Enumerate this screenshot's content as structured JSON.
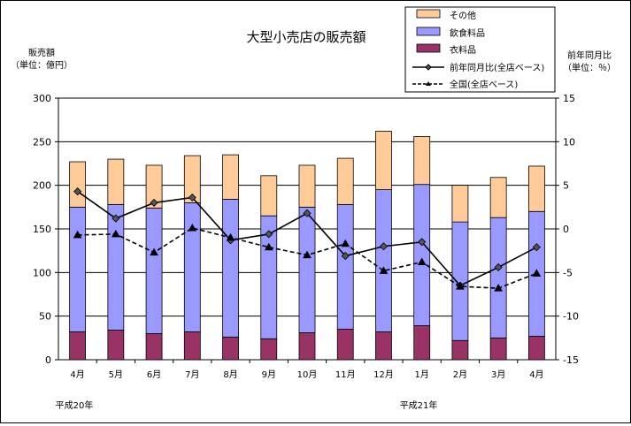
{
  "chart_data": {
    "type": "bar+line",
    "title": "大型小売店の販売額",
    "ylabel_left": [
      "販売額",
      "（単位：億円）"
    ],
    "ylabel_right": [
      "前年同月比",
      "（単位：％）"
    ],
    "ylim_left": [
      0,
      300
    ],
    "yticks_left": [
      0,
      50,
      100,
      150,
      200,
      250,
      300
    ],
    "ylim_right": [
      -15,
      15
    ],
    "yticks_right": [
      -15,
      -10,
      -5,
      0,
      5,
      10,
      15
    ],
    "categories": [
      "4月",
      "5月",
      "6月",
      "7月",
      "8月",
      "9月",
      "10月",
      "11月",
      "12月",
      "1月",
      "2月",
      "3月",
      "4月"
    ],
    "year_labels": [
      {
        "text": "平成20年",
        "category_index": 0
      },
      {
        "text": "平成21年",
        "category_index": 9
      }
    ],
    "stacked_series": [
      {
        "name": "衣料品",
        "color": "#993366",
        "values": [
          32,
          34,
          30,
          32,
          26,
          24,
          31,
          35,
          32,
          39,
          22,
          25,
          27
        ]
      },
      {
        "name": "飲食料品",
        "color": "#9999ff",
        "values": [
          143,
          144,
          144,
          148,
          158,
          141,
          144,
          143,
          163,
          162,
          136,
          138,
          143
        ]
      },
      {
        "name": "その他",
        "color": "#ffcc99",
        "values": [
          52,
          52,
          49,
          54,
          51,
          46,
          48,
          53,
          67,
          55,
          42,
          46,
          52
        ]
      }
    ],
    "line_series": [
      {
        "name": "前年同月比(全店ベース)",
        "style": "solid",
        "marker": "diamond",
        "color": "#000000",
        "values": [
          4.3,
          1.2,
          3.0,
          3.6,
          -1.3,
          -0.6,
          1.8,
          -3.1,
          -2.0,
          -1.5,
          -6.5,
          -4.4,
          -2.1
        ]
      },
      {
        "name": "全国(全店ベース)",
        "style": "dashed",
        "marker": "triangle",
        "color": "#000000",
        "values": [
          -0.7,
          -0.6,
          -2.7,
          0.1,
          -1.0,
          -2.1,
          -3.0,
          -1.7,
          -4.8,
          -3.8,
          -6.6,
          -6.8,
          -5.1
        ]
      }
    ],
    "legend": {
      "position": "top-right",
      "entries": [
        "その他",
        "飲食料品",
        "衣料品",
        "前年同月比(全店ベース)",
        "全国(全店ベース)"
      ]
    }
  }
}
